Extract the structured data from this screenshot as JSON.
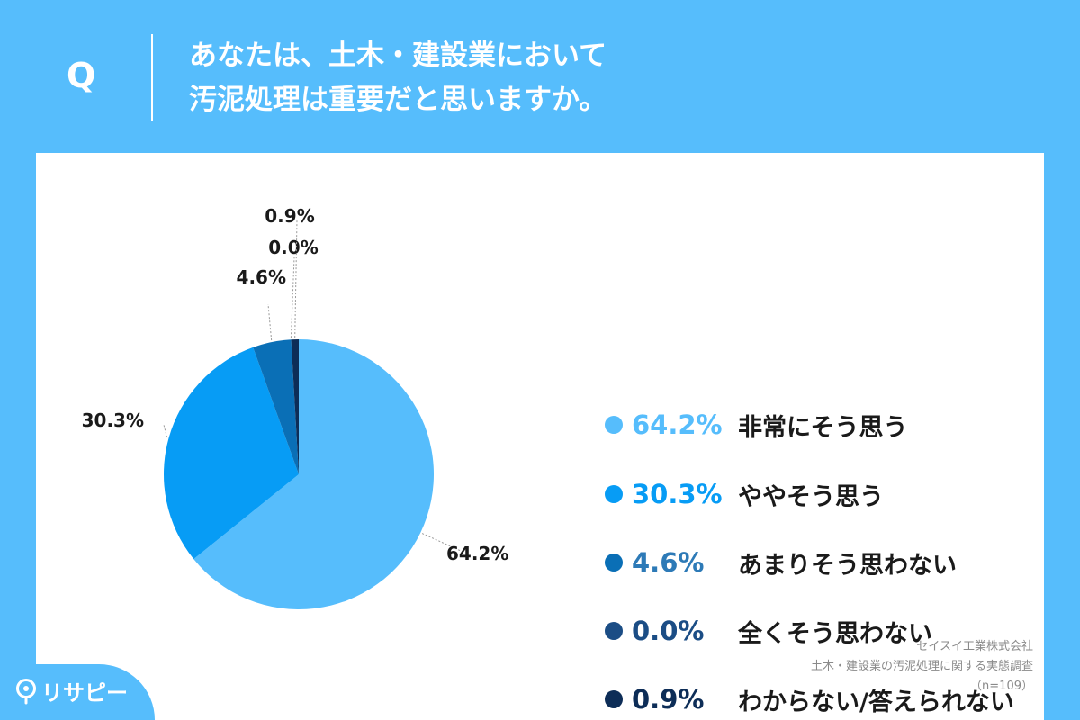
{
  "header": {
    "q_mark": "Q",
    "question_line1": "あなたは、土木・建設業において",
    "question_line2": "汚泥処理は重要だと思いますか。"
  },
  "chart_data": {
    "type": "pie",
    "slices": [
      {
        "label": "非常にそう思う",
        "value": 64.2,
        "display": "64.2%",
        "color": "#56bdfc"
      },
      {
        "label": "ややそう思う",
        "value": 30.3,
        "display": "30.3%",
        "color": "#079cf5"
      },
      {
        "label": "あまりそう思わない",
        "value": 4.6,
        "display": "4.6%",
        "color": "#0a6fb6"
      },
      {
        "label": "全くそう思わない",
        "value": 0.0,
        "display": "0.0%",
        "color": "#1b4d85"
      },
      {
        "label": "わからない/答えられない",
        "value": 0.9,
        "display": "0.9%",
        "color": "#0d2d57"
      }
    ],
    "legend_text_colors": [
      "#56bdfc",
      "#079cf5",
      "#2d7ab7",
      "#1b4d85",
      "#0d2d57"
    ],
    "legend_position": "right"
  },
  "credits": {
    "company": "セイスイ工業株式会社",
    "survey": "土木・建設業の汚泥処理に関する実態調査",
    "sample": "（n=109）"
  },
  "logo": {
    "text": "リサピー",
    "icon": "map-pin-icon"
  }
}
